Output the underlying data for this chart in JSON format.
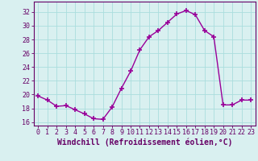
{
  "x": [
    0,
    1,
    2,
    3,
    4,
    5,
    6,
    7,
    8,
    9,
    10,
    11,
    12,
    13,
    14,
    15,
    16,
    17,
    18,
    19,
    20,
    21,
    22,
    23
  ],
  "y": [
    19.8,
    19.2,
    18.3,
    18.4,
    17.8,
    17.2,
    16.5,
    16.4,
    18.2,
    20.9,
    23.4,
    26.5,
    28.4,
    29.3,
    30.5,
    31.7,
    32.2,
    31.6,
    29.3,
    28.4,
    18.5,
    18.5,
    19.2,
    19.2
  ],
  "line_color": "#990099",
  "marker": "+",
  "marker_size": 4,
  "marker_linewidth": 1.2,
  "line_width": 1.0,
  "xlabel": "Windchill (Refroidissement éolien,°C)",
  "xlabel_fontsize": 7,
  "xlabel_color": "#660066",
  "ylim": [
    15.5,
    33.5
  ],
  "xlim": [
    -0.5,
    23.5
  ],
  "yticks": [
    16,
    18,
    20,
    22,
    24,
    26,
    28,
    30,
    32
  ],
  "xticks": [
    0,
    1,
    2,
    3,
    4,
    5,
    6,
    7,
    8,
    9,
    10,
    11,
    12,
    13,
    14,
    15,
    16,
    17,
    18,
    19,
    20,
    21,
    22,
    23
  ],
  "background_color": "#d9f0f0",
  "grid_color": "#aadddd",
  "tick_color": "#660066",
  "tick_fontsize": 6,
  "spine_color": "#660066"
}
